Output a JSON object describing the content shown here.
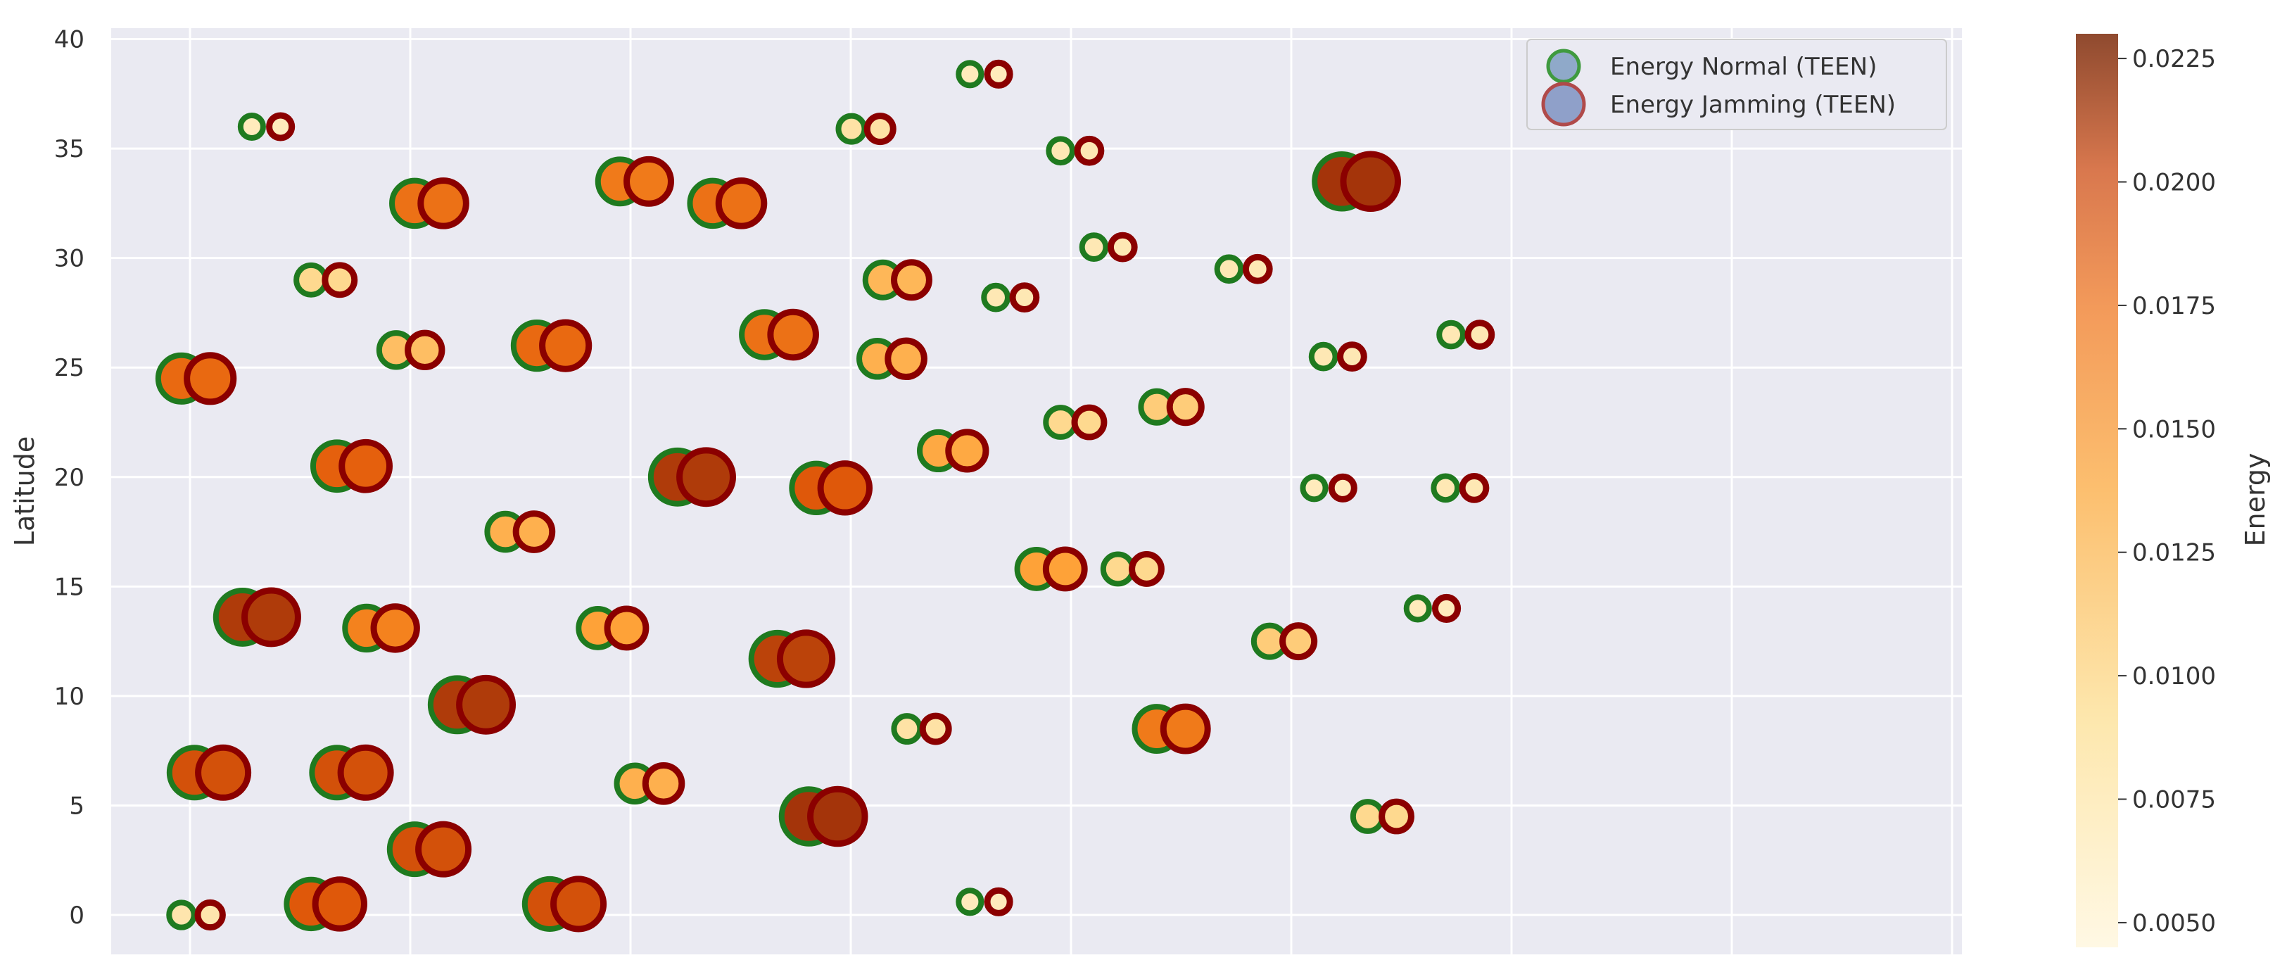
{
  "chart_data": {
    "type": "scatter",
    "title": "",
    "xlabel": "",
    "ylabel": "Latitude",
    "ylim": [
      -1.8,
      40.5
    ],
    "xlim": [
      0,
      1
    ],
    "y_ticks": [
      0,
      5,
      10,
      15,
      20,
      25,
      30,
      35,
      40
    ],
    "grid": true,
    "legend_position": "top-right",
    "colorbar": {
      "label": "Energy",
      "min": 0.0045,
      "max": 0.023,
      "ticks": [
        "0.0050",
        "0.0075",
        "0.0100",
        "0.0125",
        "0.0150",
        "0.0175",
        "0.0200",
        "0.0225"
      ],
      "tick_values": [
        0.005,
        0.0075,
        0.01,
        0.0125,
        0.015,
        0.0175,
        0.02,
        0.0225
      ]
    },
    "series": [
      {
        "name": "Energy Normal (TEEN)",
        "edge_color": "#1f7a1f",
        "legend_face": "#8fa9c9",
        "x_offset": 0
      },
      {
        "name": "Energy Jamming (TEEN)",
        "edge_color": "#8b0000",
        "legend_face": "#8fa0c9",
        "x_offset": 0.0155
      }
    ],
    "points": [
      {
        "x": 0.076,
        "y": 36.0,
        "energy": 0.007
      },
      {
        "x": 0.108,
        "y": 29.0,
        "energy": 0.01
      },
      {
        "x": 0.038,
        "y": 24.5,
        "energy": 0.0175
      },
      {
        "x": 0.122,
        "y": 20.5,
        "energy": 0.018
      },
      {
        "x": 0.164,
        "y": 32.5,
        "energy": 0.017
      },
      {
        "x": 0.154,
        "y": 25.8,
        "energy": 0.012
      },
      {
        "x": 0.213,
        "y": 17.5,
        "energy": 0.013
      },
      {
        "x": 0.071,
        "y": 13.6,
        "energy": 0.0205
      },
      {
        "x": 0.138,
        "y": 13.1,
        "energy": 0.016
      },
      {
        "x": 0.045,
        "y": 6.5,
        "energy": 0.019
      },
      {
        "x": 0.122,
        "y": 6.5,
        "energy": 0.019
      },
      {
        "x": 0.164,
        "y": 3.0,
        "energy": 0.019
      },
      {
        "x": 0.108,
        "y": 0.5,
        "energy": 0.0185
      },
      {
        "x": 0.038,
        "y": 0.0,
        "energy": 0.008
      },
      {
        "x": 0.187,
        "y": 9.6,
        "energy": 0.0205
      },
      {
        "x": 0.23,
        "y": 26.0,
        "energy": 0.0175
      },
      {
        "x": 0.275,
        "y": 33.5,
        "energy": 0.0165
      },
      {
        "x": 0.237,
        "y": 0.5,
        "energy": 0.019
      },
      {
        "x": 0.263,
        "y": 13.1,
        "energy": 0.014
      },
      {
        "x": 0.283,
        "y": 6.0,
        "energy": 0.013
      },
      {
        "x": 0.306,
        "y": 20.0,
        "energy": 0.0205
      },
      {
        "x": 0.325,
        "y": 32.5,
        "energy": 0.017
      },
      {
        "x": 0.353,
        "y": 26.5,
        "energy": 0.017
      },
      {
        "x": 0.36,
        "y": 11.7,
        "energy": 0.02
      },
      {
        "x": 0.381,
        "y": 19.5,
        "energy": 0.0185
      },
      {
        "x": 0.377,
        "y": 4.5,
        "energy": 0.021
      },
      {
        "x": 0.4,
        "y": 35.9,
        "energy": 0.0085
      },
      {
        "x": 0.414,
        "y": 25.4,
        "energy": 0.013
      },
      {
        "x": 0.417,
        "y": 29.0,
        "energy": 0.0125
      },
      {
        "x": 0.43,
        "y": 8.5,
        "energy": 0.0085
      },
      {
        "x": 0.447,
        "y": 21.2,
        "energy": 0.0135
      },
      {
        "x": 0.464,
        "y": 38.4,
        "energy": 0.007
      },
      {
        "x": 0.478,
        "y": 28.2,
        "energy": 0.0075
      },
      {
        "x": 0.464,
        "y": 0.6,
        "energy": 0.007
      },
      {
        "x": 0.5,
        "y": 15.8,
        "energy": 0.014
      },
      {
        "x": 0.513,
        "y": 22.5,
        "energy": 0.01
      },
      {
        "x": 0.513,
        "y": 34.9,
        "energy": 0.0075
      },
      {
        "x": 0.531,
        "y": 30.5,
        "energy": 0.0075
      },
      {
        "x": 0.544,
        "y": 15.8,
        "energy": 0.01
      },
      {
        "x": 0.565,
        "y": 23.2,
        "energy": 0.011
      },
      {
        "x": 0.565,
        "y": 8.5,
        "energy": 0.0165
      },
      {
        "x": 0.604,
        "y": 29.5,
        "energy": 0.0075
      },
      {
        "x": 0.626,
        "y": 12.5,
        "energy": 0.011
      },
      {
        "x": 0.65,
        "y": 19.5,
        "energy": 0.007
      },
      {
        "x": 0.655,
        "y": 25.5,
        "energy": 0.0075
      },
      {
        "x": 0.665,
        "y": 33.5,
        "energy": 0.021
      },
      {
        "x": 0.679,
        "y": 4.5,
        "energy": 0.01
      },
      {
        "x": 0.706,
        "y": 14.0,
        "energy": 0.007
      },
      {
        "x": 0.721,
        "y": 19.5,
        "energy": 0.0075
      },
      {
        "x": 0.724,
        "y": 26.5,
        "energy": 0.0075
      }
    ]
  }
}
